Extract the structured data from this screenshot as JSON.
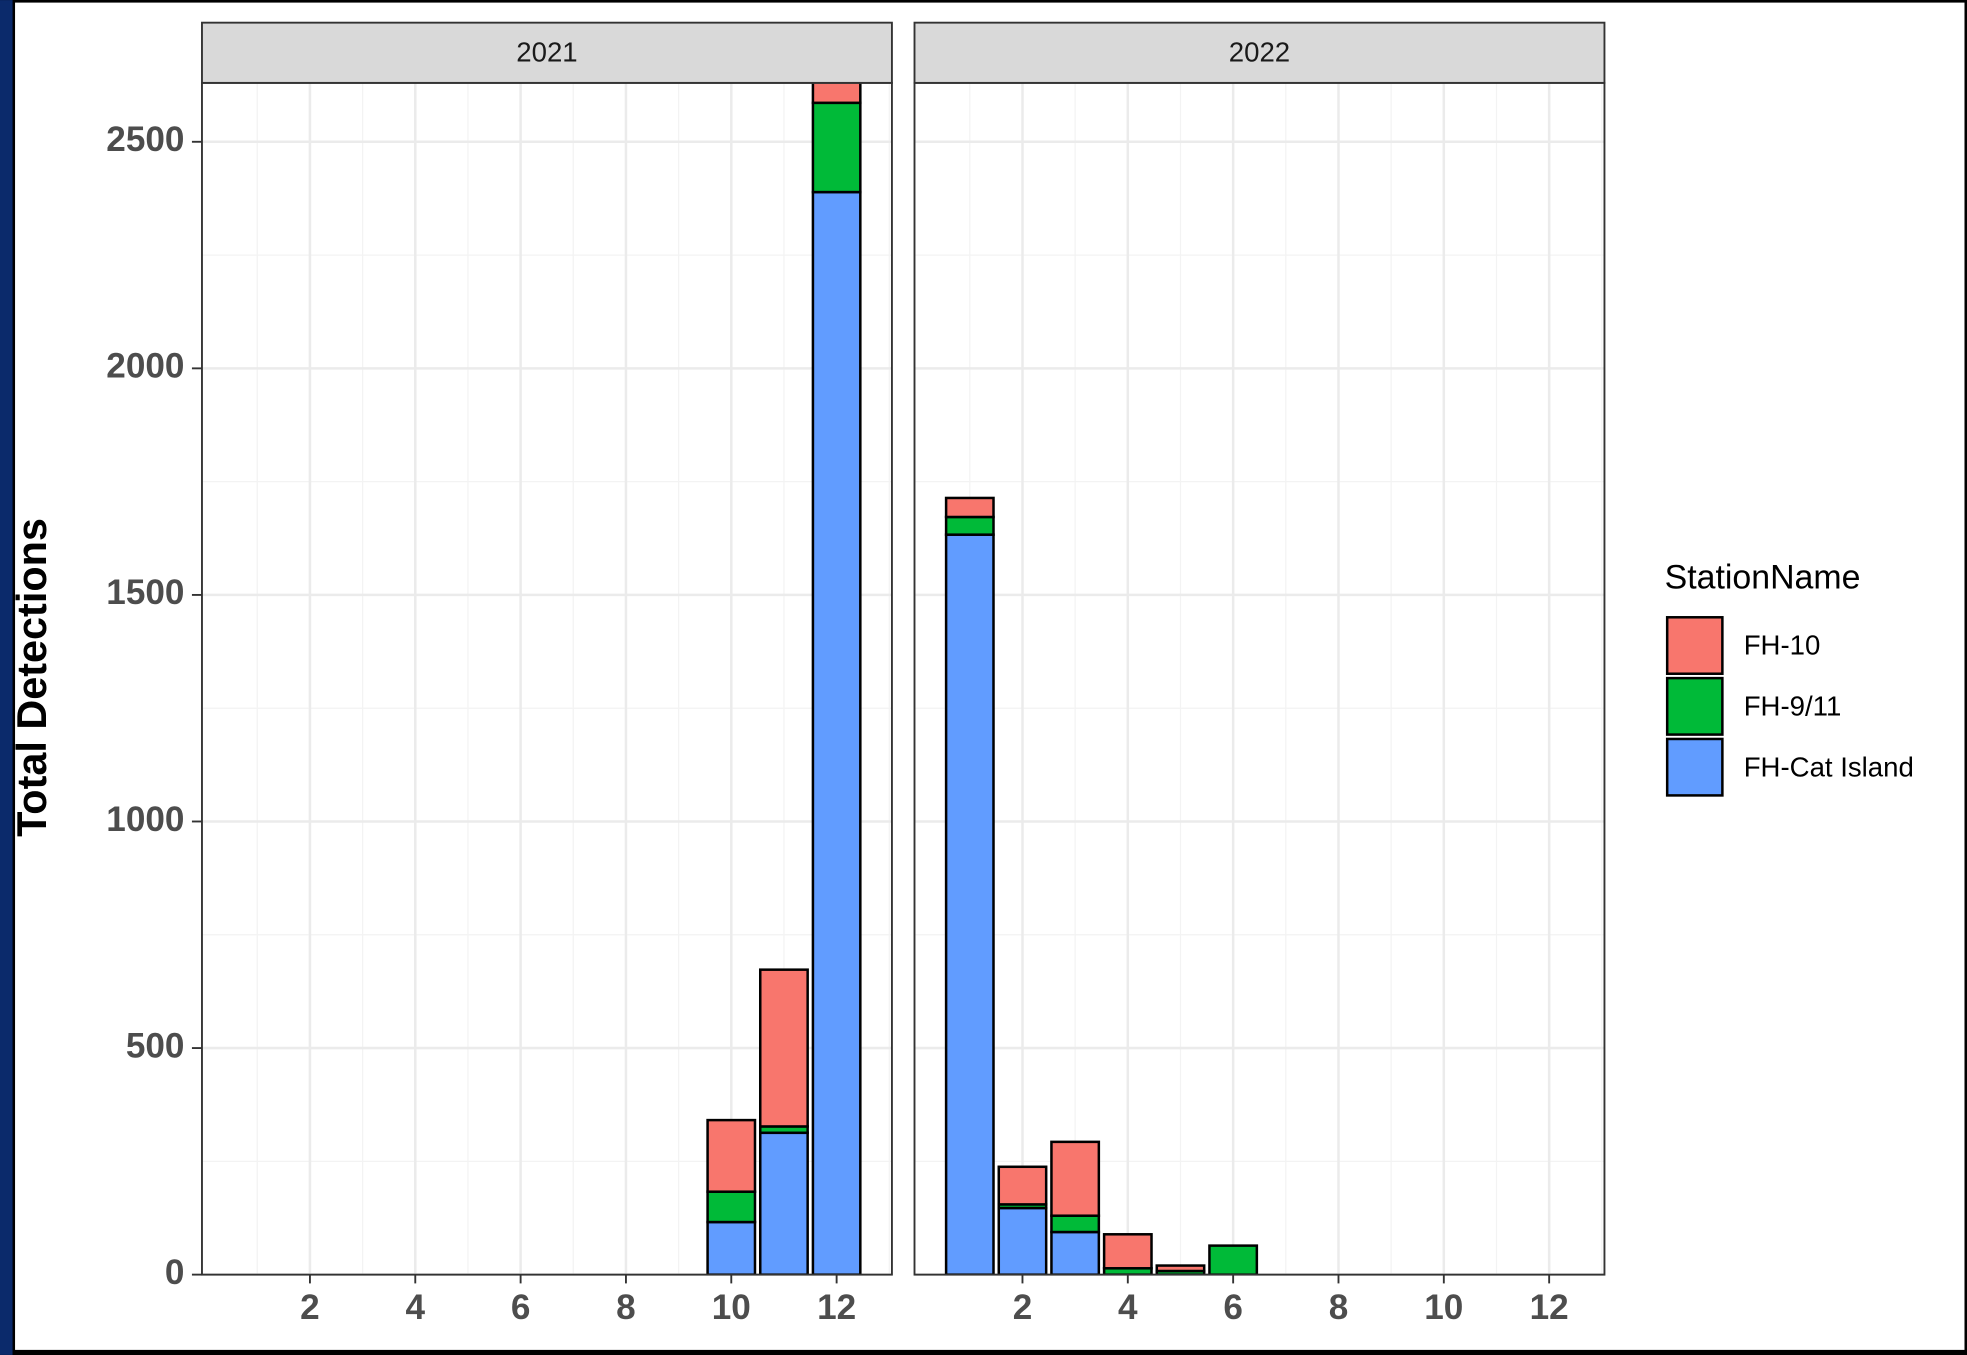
{
  "chart_data": {
    "type": "bar",
    "stacked": true,
    "ylabel": "Total Detections",
    "legend_title": "StationName",
    "ylim": [
      0,
      2630
    ],
    "yticks": [
      0,
      500,
      1000,
      1500,
      2000,
      2500
    ],
    "xlim": [
      -0.05,
      13.05
    ],
    "xticks": [
      2,
      4,
      6,
      8,
      10,
      12
    ],
    "grid": true,
    "series": [
      {
        "name": "FH-10",
        "color": "#F8766D"
      },
      {
        "name": "FH-9/11",
        "color": "#00BA38"
      },
      {
        "name": "FH-Cat Island",
        "color": "#619CFF"
      }
    ],
    "facets": [
      {
        "title": "2021",
        "x": [
          10,
          11,
          12
        ],
        "values": [
          [
            158,
            346,
            60
          ],
          [
            67,
            14,
            197
          ],
          [
            116,
            313,
            2389
          ]
        ]
      },
      {
        "title": "2022",
        "x": [
          1,
          2,
          3,
          4,
          5,
          6
        ],
        "values": [
          [
            42,
            83,
            163,
            75,
            12,
            0
          ],
          [
            39,
            8,
            36,
            14,
            8,
            64
          ],
          [
            1633,
            147,
            94,
            0,
            0,
            0
          ]
        ]
      }
    ]
  }
}
